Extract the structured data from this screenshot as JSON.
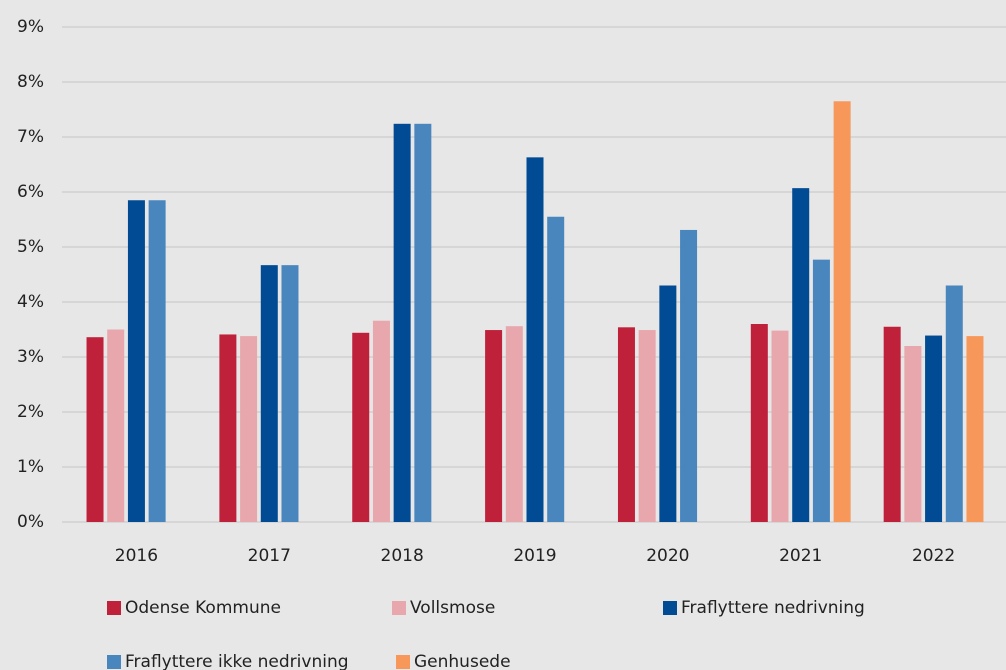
{
  "chart_data": {
    "type": "bar",
    "categories": [
      "2016",
      "2017",
      "2018",
      "2019",
      "2020",
      "2021",
      "2022"
    ],
    "series": [
      {
        "name": "Odense Kommune",
        "color": "#c0213a",
        "values": [
          3.36,
          3.41,
          3.44,
          3.49,
          3.54,
          3.6,
          3.55
        ]
      },
      {
        "name": "Vollsmose",
        "color": "#e8a6ad",
        "values": [
          3.5,
          3.38,
          3.66,
          3.56,
          3.49,
          3.48,
          3.2
        ]
      },
      {
        "name": "Fraflyttere nedrivning",
        "color": "#004b93",
        "values": [
          5.85,
          4.67,
          7.24,
          6.63,
          4.3,
          6.07,
          3.39
        ]
      },
      {
        "name": "Fraflyttere ikke nedrivning",
        "color": "#4a86be",
        "values": [
          5.85,
          4.67,
          7.24,
          5.55,
          5.31,
          4.77,
          4.3
        ]
      },
      {
        "name": "Genhusede",
        "color": "#f7985a",
        "values": [
          null,
          null,
          null,
          null,
          null,
          7.65,
          3.38
        ]
      }
    ],
    "ylim": [
      0,
      9
    ],
    "yticks": [
      {
        "value": 0,
        "label": "0%"
      },
      {
        "value": 1,
        "label": "1%"
      },
      {
        "value": 2,
        "label": "2%"
      },
      {
        "value": 3,
        "label": "3%"
      },
      {
        "value": 4,
        "label": "4%"
      },
      {
        "value": 5,
        "label": "5%"
      },
      {
        "value": 6,
        "label": "6%"
      },
      {
        "value": 7,
        "label": "7%"
      },
      {
        "value": 8,
        "label": "8%"
      },
      {
        "value": 9,
        "label": "9%"
      }
    ],
    "grid": true
  }
}
